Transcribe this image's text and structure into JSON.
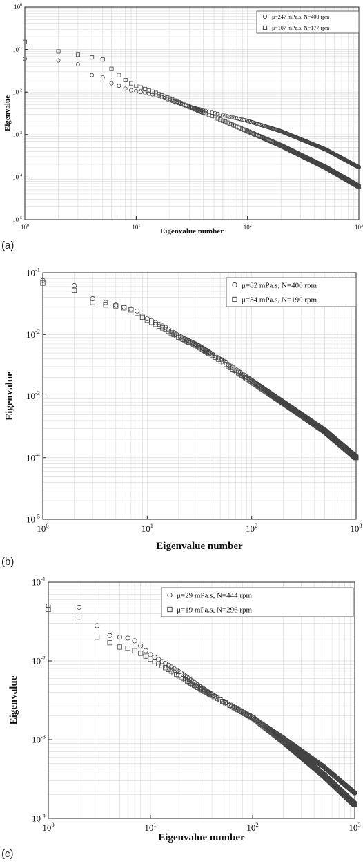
{
  "panels": [
    {
      "letter": "(a)"
    },
    {
      "letter": "(b)"
    },
    {
      "letter": "(c)"
    }
  ],
  "chart_data": [
    {
      "type": "scatter",
      "panel": "(a)",
      "xlabel": "Eigenvalue number",
      "ylabel": "Eigenvalue",
      "xscale": "log",
      "yscale": "log",
      "xlim": [
        1,
        1000
      ],
      "ylim": [
        1e-05,
        1
      ],
      "xticks": [
        1,
        10,
        100,
        1000
      ],
      "yticks": [
        1,
        0.1,
        0.01,
        0.001,
        0.0001,
        1e-05
      ],
      "xtick_labels": [
        "10^0",
        "10^1",
        "10^2",
        "10^3"
      ],
      "ytick_labels": [
        "10^0",
        "10^-1",
        "10^-2",
        "10^-3",
        "10^-4",
        "10^-5"
      ],
      "grid": true,
      "legend_position": "top-right",
      "series": [
        {
          "name": "μ=247 mPa.s, N=400 rpm",
          "marker": "circle",
          "x": [
            1,
            2,
            3,
            4,
            5,
            6,
            7,
            8,
            9,
            10,
            15,
            20,
            30,
            50,
            100,
            200,
            500,
            1000
          ],
          "y": [
            0.06,
            0.055,
            0.045,
            0.025,
            0.022,
            0.016,
            0.014,
            0.012,
            0.011,
            0.0105,
            0.0085,
            0.0065,
            0.0045,
            0.0032,
            0.0021,
            0.0012,
            0.00045,
            0.00017
          ]
        },
        {
          "name": "μ=107 mPa.s, N=177 rpm",
          "marker": "square",
          "x": [
            1,
            2,
            3,
            4,
            5,
            6,
            7,
            8,
            9,
            10,
            15,
            20,
            30,
            50,
            100,
            200,
            500,
            1000
          ],
          "y": [
            0.15,
            0.09,
            0.075,
            0.065,
            0.058,
            0.035,
            0.025,
            0.019,
            0.016,
            0.014,
            0.0095,
            0.007,
            0.0045,
            0.0026,
            0.0012,
            0.00055,
            0.00017,
            6e-05
          ]
        }
      ]
    },
    {
      "type": "scatter",
      "panel": "(b)",
      "xlabel": "Eigenvalue number",
      "ylabel": "Eigenvalue",
      "xscale": "log",
      "yscale": "log",
      "xlim": [
        1,
        1000
      ],
      "ylim": [
        1e-05,
        0.1
      ],
      "xticks": [
        1,
        10,
        100,
        1000
      ],
      "yticks": [
        0.1,
        0.01,
        0.001,
        0.0001,
        1e-05
      ],
      "xtick_labels": [
        "10^0",
        "10^1",
        "10^2",
        "10^3"
      ],
      "ytick_labels": [
        "10^-1",
        "10^-2",
        "10^-3",
        "10^-4",
        "10^-5"
      ],
      "grid": true,
      "legend_position": "top-right",
      "series": [
        {
          "name": "μ=82 mPa.s, N=400 rpm",
          "marker": "circle",
          "x": [
            1,
            2,
            3,
            4,
            5,
            6,
            7,
            8,
            9,
            10,
            15,
            20,
            30,
            50,
            100,
            200,
            500,
            1000
          ],
          "y": [
            0.075,
            0.062,
            0.038,
            0.033,
            0.03,
            0.028,
            0.026,
            0.024,
            0.02,
            0.018,
            0.013,
            0.0095,
            0.0068,
            0.004,
            0.0018,
            0.0008,
            0.00028,
            0.0001
          ]
        },
        {
          "name": "μ=34 mPa.s, N=190 rpm",
          "marker": "square",
          "x": [
            1,
            2,
            3,
            4,
            5,
            6,
            7,
            8,
            9,
            10,
            15,
            20,
            30,
            50,
            100,
            200,
            500,
            1000
          ],
          "y": [
            0.068,
            0.052,
            0.033,
            0.03,
            0.029,
            0.027,
            0.025,
            0.022,
            0.019,
            0.017,
            0.012,
            0.009,
            0.0065,
            0.0038,
            0.0017,
            0.00078,
            0.00027,
            0.0001
          ]
        }
      ]
    },
    {
      "type": "scatter",
      "panel": "(c)",
      "xlabel": "Eigenvalue number",
      "ylabel": "Eigenvalue",
      "xscale": "log",
      "yscale": "log",
      "xlim": [
        1,
        1000
      ],
      "ylim": [
        0.0001,
        0.1
      ],
      "xticks": [
        1,
        10,
        100,
        1000
      ],
      "yticks": [
        0.1,
        0.01,
        0.001,
        0.0001
      ],
      "xtick_labels": [
        "10^0",
        "10^1",
        "10^2",
        "10^3"
      ],
      "ytick_labels": [
        "10^-1",
        "10^-2",
        "10^-3",
        "10^-4"
      ],
      "grid": true,
      "legend_position": "top-right",
      "series": [
        {
          "name": "μ=29 mPa.s, N=444 rpm",
          "marker": "circle",
          "x": [
            1,
            2,
            3,
            4,
            5,
            6,
            7,
            8,
            9,
            10,
            15,
            20,
            30,
            50,
            100,
            200,
            500,
            1000
          ],
          "y": [
            0.05,
            0.048,
            0.028,
            0.021,
            0.02,
            0.0195,
            0.018,
            0.0155,
            0.0135,
            0.012,
            0.0088,
            0.007,
            0.0048,
            0.0031,
            0.0019,
            0.00105,
            0.00045,
            0.00021
          ]
        },
        {
          "name": "μ=19 mPa.s, N=296 rpm",
          "marker": "square",
          "x": [
            1,
            2,
            3,
            4,
            5,
            6,
            7,
            8,
            9,
            10,
            15,
            20,
            30,
            50,
            100,
            200,
            500,
            1000
          ],
          "y": [
            0.045,
            0.036,
            0.02,
            0.017,
            0.015,
            0.0145,
            0.0135,
            0.0125,
            0.0115,
            0.0105,
            0.0078,
            0.0062,
            0.0045,
            0.0031,
            0.0019,
            0.00095,
            0.00035,
            0.00015
          ]
        }
      ]
    }
  ]
}
